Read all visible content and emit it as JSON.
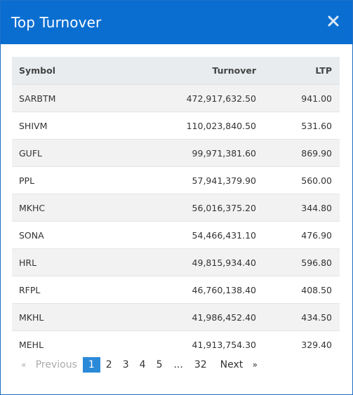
{
  "modal": {
    "title": "Top Turnover",
    "close_icon": "close-icon"
  },
  "table": {
    "headers": {
      "symbol": "Symbol",
      "turnover": "Turnover",
      "ltp": "LTP"
    },
    "rows": [
      {
        "symbol": "SARBTM",
        "turnover": "472,917,632.50",
        "ltp": "941.00"
      },
      {
        "symbol": "SHIVM",
        "turnover": "110,023,840.50",
        "ltp": "531.60"
      },
      {
        "symbol": "GUFL",
        "turnover": "99,971,381.60",
        "ltp": "869.90"
      },
      {
        "symbol": "PPL",
        "turnover": "57,941,379.90",
        "ltp": "560.00"
      },
      {
        "symbol": "MKHC",
        "turnover": "56,016,375.20",
        "ltp": "344.80"
      },
      {
        "symbol": "SONA",
        "turnover": "54,466,431.10",
        "ltp": "476.90"
      },
      {
        "symbol": "HRL",
        "turnover": "49,815,934.40",
        "ltp": "596.80"
      },
      {
        "symbol": "RFPL",
        "turnover": "46,760,138.40",
        "ltp": "408.50"
      },
      {
        "symbol": "MKHL",
        "turnover": "41,986,452.40",
        "ltp": "434.50"
      },
      {
        "symbol": "MEHL",
        "turnover": "41,913,754.30",
        "ltp": "329.40"
      }
    ]
  },
  "pagination": {
    "previous_arrow": "«",
    "previous": "Previous",
    "pages": [
      "1",
      "2",
      "3",
      "4",
      "5"
    ],
    "ellipsis": "...",
    "last": "32",
    "next": "Next",
    "next_arrow": "»",
    "active_page": "1"
  },
  "colors": {
    "header": "#0a6ed1",
    "active_page": "#2b8ad8"
  }
}
